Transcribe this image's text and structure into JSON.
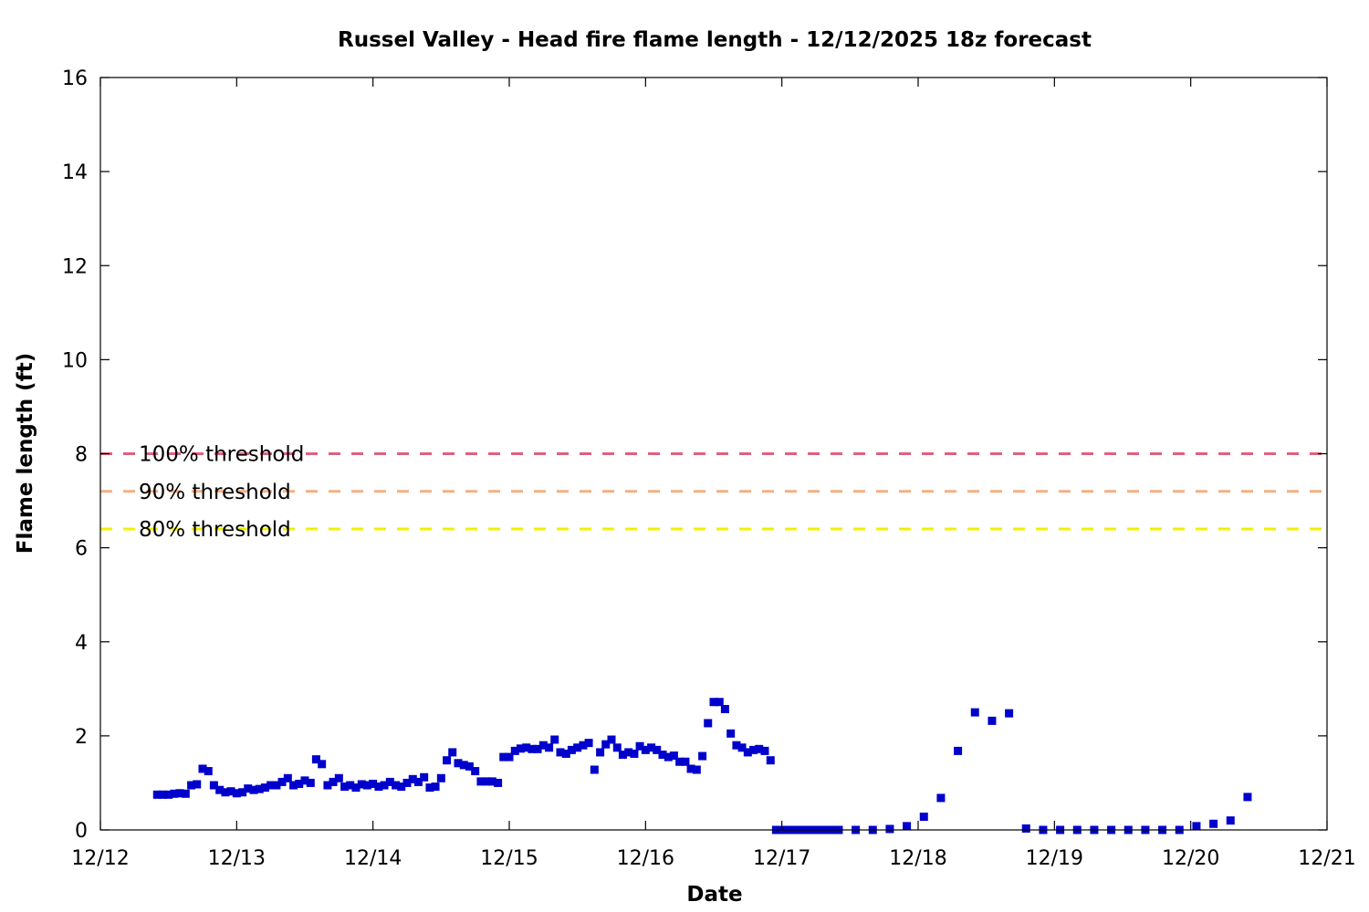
{
  "chart_data": {
    "type": "scatter",
    "title": "Russel Valley - Head fire flame length - 12/12/2025 18z forecast",
    "xlabel": "Date",
    "ylabel": "Flame length (ft)",
    "xlim": [
      0,
      9
    ],
    "ylim": [
      0,
      16
    ],
    "x_tick_labels": [
      "12/12",
      "12/13",
      "12/14",
      "12/15",
      "12/16",
      "12/17",
      "12/18",
      "12/19",
      "12/20",
      "12/21"
    ],
    "y_ticks": [
      0,
      2,
      4,
      6,
      8,
      10,
      12,
      14,
      16
    ],
    "grid": false,
    "point_color": "#0000cc",
    "x_units": "days since 12/12 00z",
    "thresholds": [
      {
        "label": "100% threshold",
        "value": 8.0,
        "color": "#e0607e"
      },
      {
        "label": "90% threshold",
        "value": 7.2,
        "color": "#f4b084"
      },
      {
        "label": "80% threshold",
        "value": 6.4,
        "color": "#f0f000"
      }
    ],
    "series": [
      {
        "points": [
          [
            0.417,
            0.75
          ],
          [
            0.458,
            0.75
          ],
          [
            0.5,
            0.75
          ],
          [
            0.542,
            0.77
          ],
          [
            0.583,
            0.78
          ],
          [
            0.625,
            0.77
          ],
          [
            0.667,
            0.95
          ],
          [
            0.708,
            0.97
          ],
          [
            0.75,
            1.3
          ],
          [
            0.792,
            1.25
          ],
          [
            0.833,
            0.95
          ],
          [
            0.875,
            0.85
          ],
          [
            0.917,
            0.8
          ],
          [
            0.958,
            0.82
          ],
          [
            1.0,
            0.78
          ],
          [
            1.042,
            0.8
          ],
          [
            1.083,
            0.88
          ],
          [
            1.125,
            0.85
          ],
          [
            1.167,
            0.87
          ],
          [
            1.208,
            0.9
          ],
          [
            1.25,
            0.95
          ],
          [
            1.292,
            0.95
          ],
          [
            1.333,
            1.02
          ],
          [
            1.375,
            1.1
          ],
          [
            1.417,
            0.95
          ],
          [
            1.458,
            0.98
          ],
          [
            1.5,
            1.05
          ],
          [
            1.542,
            1.0
          ],
          [
            1.583,
            1.5
          ],
          [
            1.625,
            1.4
          ],
          [
            1.667,
            0.95
          ],
          [
            1.708,
            1.02
          ],
          [
            1.75,
            1.1
          ],
          [
            1.792,
            0.92
          ],
          [
            1.833,
            0.95
          ],
          [
            1.875,
            0.9
          ],
          [
            1.917,
            0.97
          ],
          [
            1.958,
            0.95
          ],
          [
            2.0,
            0.98
          ],
          [
            2.042,
            0.92
          ],
          [
            2.083,
            0.95
          ],
          [
            2.125,
            1.02
          ],
          [
            2.167,
            0.95
          ],
          [
            2.208,
            0.92
          ],
          [
            2.25,
            1.0
          ],
          [
            2.292,
            1.08
          ],
          [
            2.333,
            1.02
          ],
          [
            2.375,
            1.12
          ],
          [
            2.417,
            0.9
          ],
          [
            2.458,
            0.92
          ],
          [
            2.5,
            1.1
          ],
          [
            2.542,
            1.48
          ],
          [
            2.583,
            1.65
          ],
          [
            2.625,
            1.42
          ],
          [
            2.667,
            1.38
          ],
          [
            2.708,
            1.35
          ],
          [
            2.75,
            1.25
          ],
          [
            2.792,
            1.03
          ],
          [
            2.833,
            1.03
          ],
          [
            2.875,
            1.03
          ],
          [
            2.917,
            1.0
          ],
          [
            2.958,
            1.55
          ],
          [
            3.0,
            1.55
          ],
          [
            3.042,
            1.68
          ],
          [
            3.083,
            1.73
          ],
          [
            3.125,
            1.75
          ],
          [
            3.167,
            1.72
          ],
          [
            3.208,
            1.72
          ],
          [
            3.25,
            1.8
          ],
          [
            3.292,
            1.75
          ],
          [
            3.333,
            1.92
          ],
          [
            3.375,
            1.65
          ],
          [
            3.417,
            1.62
          ],
          [
            3.458,
            1.7
          ],
          [
            3.5,
            1.75
          ],
          [
            3.542,
            1.8
          ],
          [
            3.583,
            1.85
          ],
          [
            3.625,
            1.28
          ],
          [
            3.667,
            1.65
          ],
          [
            3.708,
            1.82
          ],
          [
            3.75,
            1.92
          ],
          [
            3.792,
            1.75
          ],
          [
            3.833,
            1.6
          ],
          [
            3.875,
            1.65
          ],
          [
            3.917,
            1.62
          ],
          [
            3.958,
            1.78
          ],
          [
            4.0,
            1.7
          ],
          [
            4.042,
            1.75
          ],
          [
            4.083,
            1.7
          ],
          [
            4.125,
            1.6
          ],
          [
            4.167,
            1.55
          ],
          [
            4.208,
            1.58
          ],
          [
            4.25,
            1.45
          ],
          [
            4.292,
            1.45
          ],
          [
            4.333,
            1.3
          ],
          [
            4.375,
            1.28
          ],
          [
            4.417,
            1.57
          ],
          [
            4.458,
            2.27
          ],
          [
            4.5,
            2.72
          ],
          [
            4.542,
            2.72
          ],
          [
            4.583,
            2.57
          ],
          [
            4.625,
            2.05
          ],
          [
            4.667,
            1.8
          ],
          [
            4.708,
            1.75
          ],
          [
            4.75,
            1.65
          ],
          [
            4.792,
            1.7
          ],
          [
            4.833,
            1.72
          ],
          [
            4.875,
            1.68
          ],
          [
            4.917,
            1.48
          ],
          [
            4.958,
            0.0
          ],
          [
            5.0,
            0.0
          ],
          [
            5.042,
            0.0
          ],
          [
            5.083,
            0.0
          ],
          [
            5.125,
            0.0
          ],
          [
            5.167,
            0.0
          ],
          [
            5.208,
            0.0
          ],
          [
            5.25,
            0.0
          ],
          [
            5.292,
            0.0
          ],
          [
            5.333,
            0.0
          ],
          [
            5.375,
            0.0
          ],
          [
            5.417,
            0.0
          ],
          [
            5.542,
            0.0
          ],
          [
            5.667,
            0.0
          ],
          [
            5.792,
            0.02
          ],
          [
            5.917,
            0.08
          ],
          [
            6.042,
            0.28
          ],
          [
            6.167,
            0.68
          ],
          [
            6.292,
            1.68
          ],
          [
            6.417,
            2.5
          ],
          [
            6.542,
            2.32
          ],
          [
            6.667,
            2.48
          ],
          [
            6.792,
            0.03
          ],
          [
            6.917,
            0.0
          ],
          [
            7.042,
            0.0
          ],
          [
            7.167,
            0.0
          ],
          [
            7.292,
            0.0
          ],
          [
            7.417,
            0.0
          ],
          [
            7.542,
            0.0
          ],
          [
            7.667,
            0.0
          ],
          [
            7.792,
            0.0
          ],
          [
            7.917,
            0.0
          ],
          [
            8.042,
            0.08
          ],
          [
            8.167,
            0.13
          ],
          [
            8.292,
            0.2
          ],
          [
            8.417,
            0.7
          ]
        ]
      }
    ]
  }
}
